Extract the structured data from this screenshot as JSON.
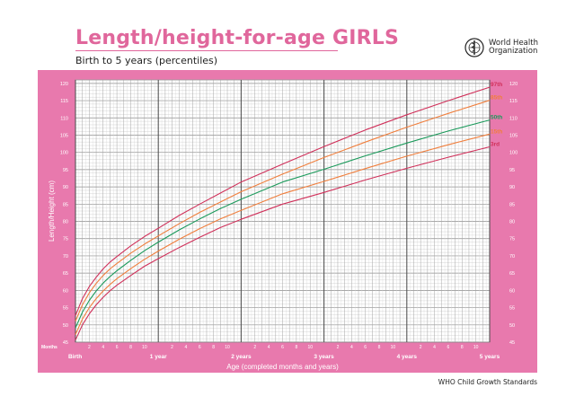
{
  "header": {
    "title": "Length/height-for-age GIRLS",
    "subtitle": "Birth to 5 years (percentiles)",
    "org_line1": "World Health",
    "org_line2": "Organization",
    "logo_icon": "who-emblem-icon"
  },
  "footer": {
    "source": "WHO Child Growth Standards"
  },
  "colors": {
    "frame": "#e879ad",
    "plot": "#ffffff",
    "grid": "#a9a9a9",
    "p97": "#d0305a",
    "p85": "#f07e3c",
    "p50": "#1b9a5b",
    "p15": "#f07e3c",
    "p3": "#d0305a"
  },
  "chart_data": {
    "type": "line",
    "title": "Length/height-for-age GIRLS",
    "subtitle": "Birth to 5 years (percentiles)",
    "xlabel": "Age (completed months and years)",
    "ylabel": "Length/Height (cm)",
    "xlim": [
      0,
      60
    ],
    "ylim": [
      45,
      121
    ],
    "x_corner_label": "Months",
    "x_month_ticks": [
      "2",
      "4",
      "6",
      "8",
      "10",
      "2",
      "4",
      "6",
      "8",
      "10",
      "2",
      "4",
      "6",
      "8",
      "10",
      "2",
      "4",
      "6",
      "8",
      "10",
      "2",
      "4",
      "6",
      "8",
      "10"
    ],
    "x_year_labels": [
      "Birth",
      "1 year",
      "2 years",
      "3 years",
      "4 years",
      "5 years"
    ],
    "y_ticks": [
      45,
      50,
      55,
      60,
      65,
      70,
      75,
      80,
      85,
      90,
      95,
      100,
      105,
      110,
      115,
      120
    ],
    "grid": true,
    "legend": "right-end line labels",
    "x": [
      0,
      1,
      2,
      3,
      4,
      5,
      6,
      8,
      10,
      12,
      15,
      18,
      21,
      24,
      30,
      36,
      42,
      48,
      54,
      60
    ],
    "series": [
      {
        "name": "97th",
        "values": [
          52.7,
          57.6,
          61.1,
          63.8,
          66.2,
          68.2,
          69.8,
          72.9,
          75.6,
          78.0,
          81.7,
          85.0,
          88.2,
          91.4,
          96.6,
          101.7,
          106.5,
          110.9,
          115.0,
          118.9
        ]
      },
      {
        "name": "85th",
        "values": [
          51.1,
          55.8,
          59.3,
          62.0,
          64.3,
          66.2,
          67.8,
          70.8,
          73.4,
          75.8,
          79.3,
          82.6,
          85.6,
          88.6,
          93.7,
          98.5,
          103.0,
          107.3,
          111.3,
          115.1
        ]
      },
      {
        "name": "50th",
        "values": [
          49.1,
          53.7,
          57.1,
          59.8,
          62.1,
          64.0,
          65.7,
          68.7,
          71.5,
          74.0,
          77.5,
          80.7,
          83.7,
          86.4,
          91.4,
          95.1,
          99.0,
          102.7,
          106.2,
          109.4
        ]
      },
      {
        "name": "15th",
        "values": [
          47.2,
          51.7,
          55.0,
          57.6,
          59.8,
          61.7,
          63.4,
          66.3,
          69.0,
          71.4,
          74.8,
          77.9,
          80.7,
          83.2,
          88.0,
          91.6,
          95.3,
          98.9,
          102.2,
          105.3
        ]
      },
      {
        "name": "3rd",
        "values": [
          45.6,
          50.0,
          53.2,
          55.8,
          58.0,
          59.9,
          61.5,
          64.3,
          67.0,
          69.2,
          72.4,
          75.4,
          78.2,
          80.6,
          85.0,
          88.4,
          92.0,
          95.4,
          98.6,
          101.6
        ]
      }
    ]
  }
}
